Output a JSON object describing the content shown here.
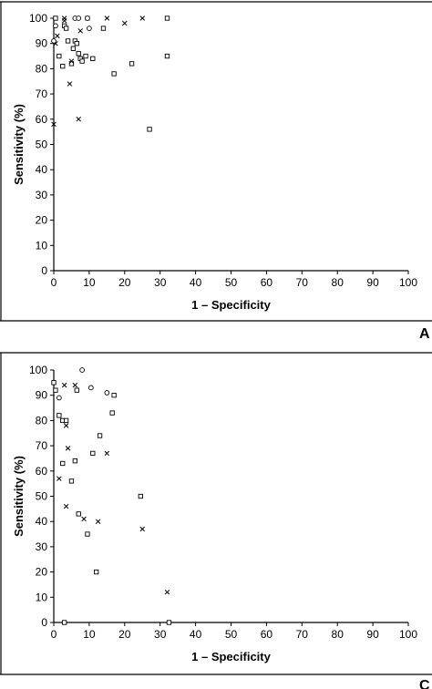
{
  "chart_data": [
    {
      "type": "scatter",
      "panel_label": "A",
      "xlabel": "1 – Specificity",
      "ylabel": "Sensitivity (%)",
      "xlim": [
        0,
        100
      ],
      "ylim": [
        0,
        100
      ],
      "xticks": [
        0,
        10,
        20,
        30,
        40,
        50,
        60,
        70,
        80,
        90,
        100
      ],
      "yticks": [
        0,
        10,
        20,
        30,
        40,
        50,
        60,
        70,
        80,
        90,
        100
      ],
      "grid": false,
      "series": [
        {
          "marker": "square",
          "points": [
            [
              0.5,
              100
            ],
            [
              3,
              97
            ],
            [
              3.5,
              96
            ],
            [
              5.5,
              88
            ],
            [
              6,
              91
            ],
            [
              6.5,
              90
            ],
            [
              7,
              86
            ],
            [
              7.5,
              84
            ],
            [
              8,
              83
            ],
            [
              9,
              85
            ],
            [
              11,
              84
            ],
            [
              14,
              96
            ],
            [
              17,
              78
            ],
            [
              22,
              82
            ],
            [
              27,
              56
            ],
            [
              32,
              100
            ],
            [
              32,
              85
            ],
            [
              1.5,
              85
            ],
            [
              2.5,
              81
            ],
            [
              4,
              91
            ],
            [
              5,
              82
            ]
          ]
        },
        {
          "marker": "x",
          "points": [
            [
              0,
              58
            ],
            [
              0.5,
              90
            ],
            [
              1,
              93
            ],
            [
              3,
              100
            ],
            [
              3,
              99
            ],
            [
              4.5,
              74
            ],
            [
              5,
              83
            ],
            [
              7,
              60
            ],
            [
              7.5,
              95
            ],
            [
              9.5,
              100
            ],
            [
              15,
              100
            ],
            [
              20,
              98
            ],
            [
              25,
              100
            ]
          ]
        },
        {
          "marker": "circle",
          "points": [
            [
              0,
              91
            ],
            [
              0.5,
              97
            ],
            [
              6,
              100
            ],
            [
              7,
              100
            ],
            [
              9.5,
              100
            ],
            [
              10,
              96
            ]
          ]
        }
      ]
    },
    {
      "type": "scatter",
      "panel_label": "C",
      "xlabel": "1 – Specificity",
      "ylabel": "Sensitivity (%)",
      "xlim": [
        0,
        100
      ],
      "ylim": [
        0,
        100
      ],
      "xticks": [
        0,
        10,
        20,
        30,
        40,
        50,
        60,
        70,
        80,
        90,
        100
      ],
      "yticks": [
        0,
        10,
        20,
        30,
        40,
        50,
        60,
        70,
        80,
        90,
        100
      ],
      "grid": false,
      "series": [
        {
          "marker": "square",
          "points": [
            [
              0,
              95
            ],
            [
              0.5,
              92
            ],
            [
              1.5,
              82
            ],
            [
              2.5,
              80
            ],
            [
              2.5,
              63
            ],
            [
              3,
              0
            ],
            [
              3.5,
              80
            ],
            [
              5,
              56
            ],
            [
              6,
              64
            ],
            [
              6.5,
              92
            ],
            [
              7,
              43
            ],
            [
              9.5,
              35
            ],
            [
              11,
              67
            ],
            [
              12,
              20
            ],
            [
              13,
              74
            ],
            [
              16.5,
              83
            ],
            [
              17,
              90
            ],
            [
              24.5,
              50
            ],
            [
              32.5,
              0
            ]
          ]
        },
        {
          "marker": "x",
          "points": [
            [
              1.5,
              57
            ],
            [
              3,
              94
            ],
            [
              3.5,
              46
            ],
            [
              3.5,
              78
            ],
            [
              4,
              69
            ],
            [
              6,
              94
            ],
            [
              8.5,
              41
            ],
            [
              12.5,
              40
            ],
            [
              15,
              67
            ],
            [
              25,
              37
            ],
            [
              32,
              12
            ]
          ]
        },
        {
          "marker": "circle",
          "points": [
            [
              1.5,
              89
            ],
            [
              8,
              100
            ],
            [
              10.5,
              93
            ],
            [
              15,
              91
            ]
          ]
        }
      ]
    }
  ]
}
